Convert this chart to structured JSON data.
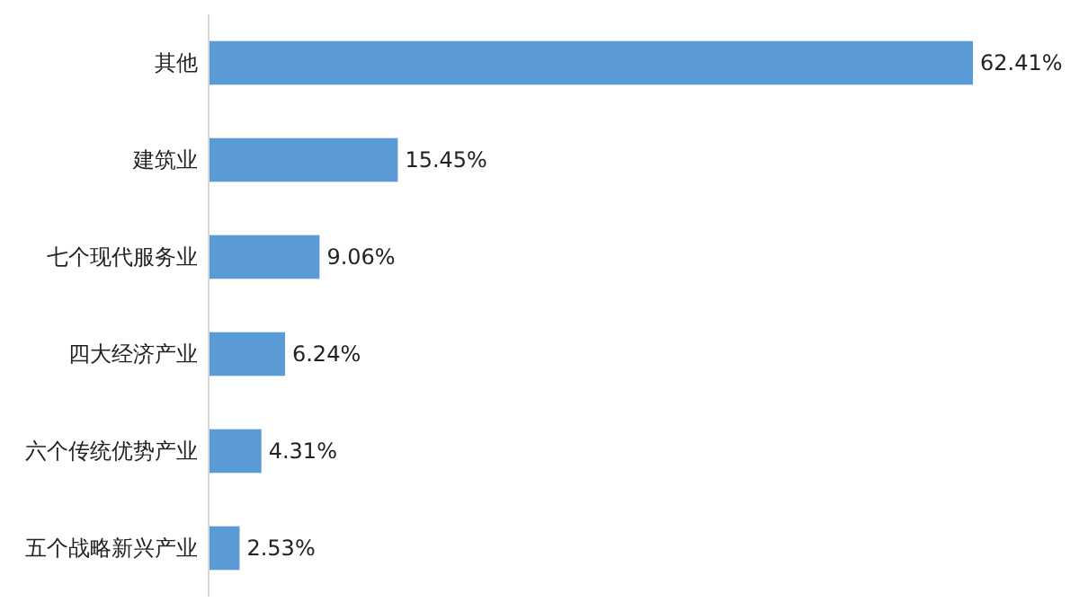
{
  "chart_data": {
    "type": "bar",
    "orientation": "horizontal",
    "categories": [
      "其他",
      "建筑业",
      "七个现代服务业",
      "四大经济产业",
      "六个传统优势产业",
      "五个战略新兴产业"
    ],
    "values": [
      62.41,
      15.45,
      9.06,
      6.24,
      4.31,
      2.53
    ],
    "value_labels": [
      "62.41%",
      "15.45%",
      "9.06%",
      "6.24%",
      "4.31%",
      "2.53%"
    ],
    "color": "#5b9bd5"
  }
}
